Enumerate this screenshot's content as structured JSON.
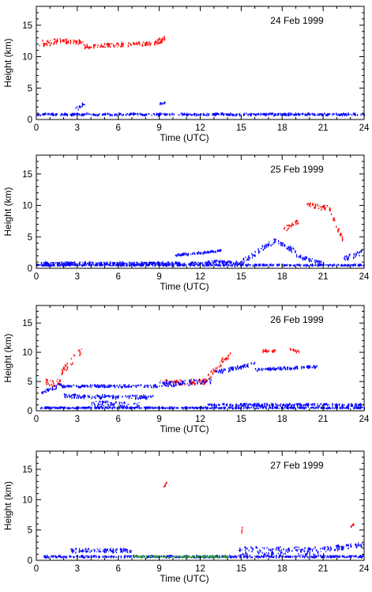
{
  "figure": {
    "colors": {
      "ice": "#ff0000",
      "low": "#0000ff",
      "other": "#2ca02c",
      "axis": "#000000"
    }
  },
  "chart_data": [
    {
      "type": "scatter",
      "title": "24 Feb 1999",
      "xlabel": "Time (UTC)",
      "ylabel": "Height (km)",
      "xlim": [
        0,
        24
      ],
      "ylim": [
        0,
        18
      ],
      "xticks": [
        0,
        3,
        6,
        9,
        12,
        15,
        18,
        21,
        24
      ],
      "yticks": [
        0,
        5,
        10,
        15
      ],
      "grid": false,
      "series": [
        {
          "color": "#ff0000",
          "segments": [
            {
              "x": [
                0.2,
                1.5
              ],
              "y": [
                12.0,
                12.5
              ],
              "spread": 1.2
            },
            {
              "x": [
                1.5,
                3.5
              ],
              "y": [
                12.6,
                12.2
              ],
              "spread": 0.7
            },
            {
              "x": [
                3.5,
                9.2
              ],
              "y": [
                11.6,
                12.2
              ],
              "spread": 0.6
            },
            {
              "x": [
                8.8,
                9.4
              ],
              "y": [
                12.5,
                13.0
              ],
              "spread": 0.5
            }
          ]
        },
        {
          "color": "#0000ff",
          "segments": [
            {
              "x": [
                0.0,
                24.0
              ],
              "y": [
                0.8,
                0.8
              ],
              "spread": 0.3
            },
            {
              "x": [
                2.8,
                3.5
              ],
              "y": [
                1.5,
                2.6
              ],
              "spread": 0.6
            },
            {
              "x": [
                9.0,
                9.4
              ],
              "y": [
                2.5,
                2.7
              ],
              "spread": 0.2
            }
          ]
        }
      ]
    },
    {
      "type": "scatter",
      "title": "25 Feb 1999",
      "xlabel": "Time (UTC)",
      "ylabel": "Height (km)",
      "xlim": [
        0,
        24
      ],
      "ylim": [
        0,
        18
      ],
      "xticks": [
        0,
        3,
        6,
        9,
        12,
        15,
        18,
        21,
        24
      ],
      "yticks": [
        0,
        5,
        10,
        15
      ],
      "grid": false,
      "series": [
        {
          "color": "#ff0000",
          "segments": [
            {
              "x": [
                19.8,
                21.5
              ],
              "y": [
                10.0,
                9.5
              ],
              "spread": 0.8
            },
            {
              "x": [
                21.5,
                22.4
              ],
              "y": [
                9.0,
                4.5
              ],
              "spread": 0.8
            },
            {
              "x": [
                18.0,
                19.2
              ],
              "y": [
                6.0,
                7.5
              ],
              "spread": 0.8
            }
          ]
        },
        {
          "color": "#0000ff",
          "segments": [
            {
              "x": [
                0.3,
                13.0
              ],
              "y": [
                0.8,
                0.8
              ],
              "spread": 0.3
            },
            {
              "x": [
                10.0,
                13.5
              ],
              "y": [
                2.0,
                2.8
              ],
              "spread": 0.3
            },
            {
              "x": [
                12.5,
                15.0
              ],
              "y": [
                1.2,
                0.8
              ],
              "spread": 0.4
            },
            {
              "x": [
                15.0,
                17.5
              ],
              "y": [
                1.0,
                4.5
              ],
              "spread": 0.8
            },
            {
              "x": [
                17.5,
                19.0
              ],
              "y": [
                4.5,
                2.5
              ],
              "spread": 0.8
            },
            {
              "x": [
                19.0,
                21.0
              ],
              "y": [
                2.0,
                0.8
              ],
              "spread": 0.6
            },
            {
              "x": [
                22.5,
                23.8
              ],
              "y": [
                1.5,
                2.5
              ],
              "spread": 0.8
            },
            {
              "x": [
                0.0,
                24.0
              ],
              "y": [
                0.5,
                0.5
              ],
              "spread": 0.2
            }
          ]
        }
      ]
    },
    {
      "type": "scatter",
      "title": "26 Feb 1999",
      "xlabel": "Time (UTC)",
      "ylabel": "Height (km)",
      "xlim": [
        0,
        24
      ],
      "ylim": [
        0,
        18
      ],
      "xticks": [
        0,
        3,
        6,
        9,
        12,
        15,
        18,
        21,
        24
      ],
      "yticks": [
        0,
        5,
        10,
        15
      ],
      "grid": false,
      "series": [
        {
          "color": "#ff0000",
          "segments": [
            {
              "x": [
                0.6,
                1.8
              ],
              "y": [
                4.8,
                4.8
              ],
              "spread": 1.2
            },
            {
              "x": [
                1.8,
                3.3
              ],
              "y": [
                6.5,
                10.5
              ],
              "spread": 1.2
            },
            {
              "x": [
                9.0,
                12.5
              ],
              "y": [
                4.8,
                5.0
              ],
              "spread": 0.9
            },
            {
              "x": [
                12.5,
                14.2
              ],
              "y": [
                5.5,
                10.0
              ],
              "spread": 1.2
            },
            {
              "x": [
                16.5,
                17.5
              ],
              "y": [
                10.2,
                10.2
              ],
              "spread": 0.4
            },
            {
              "x": [
                18.5,
                19.2
              ],
              "y": [
                10.5,
                10.0
              ],
              "spread": 0.4
            }
          ]
        },
        {
          "color": "#0000ff",
          "segments": [
            {
              "x": [
                0.3,
                1.8
              ],
              "y": [
                3.2,
                4.5
              ],
              "spread": 0.8
            },
            {
              "x": [
                1.8,
                9.0
              ],
              "y": [
                4.2,
                4.2
              ],
              "spread": 0.4
            },
            {
              "x": [
                9.0,
                12.8
              ],
              "y": [
                4.5,
                5.0
              ],
              "spread": 0.9
            },
            {
              "x": [
                13.0,
                16.0
              ],
              "y": [
                6.5,
                8.0
              ],
              "spread": 0.6
            },
            {
              "x": [
                16.0,
                20.5
              ],
              "y": [
                7.0,
                7.5
              ],
              "spread": 0.4
            },
            {
              "x": [
                0.3,
                24.0
              ],
              "y": [
                0.5,
                0.5
              ],
              "spread": 0.2
            },
            {
              "x": [
                2.0,
                8.5
              ],
              "y": [
                2.5,
                2.3
              ],
              "spread": 0.6
            },
            {
              "x": [
                4.0,
                7.5
              ],
              "y": [
                1.0,
                1.0
              ],
              "spread": 1.2
            },
            {
              "x": [
                12.5,
                24.0
              ],
              "y": [
                1.0,
                1.0
              ],
              "spread": 0.4
            }
          ]
        }
      ]
    },
    {
      "type": "scatter",
      "title": "27 Feb 1999",
      "xlabel": "Time (UTC)",
      "ylabel": "Height (km)",
      "xlim": [
        0,
        24
      ],
      "ylim": [
        0,
        18
      ],
      "xticks": [
        0,
        3,
        6,
        9,
        12,
        15,
        18,
        21,
        24
      ],
      "yticks": [
        0,
        5,
        10,
        15
      ],
      "grid": false,
      "series": [
        {
          "color": "#ff0000",
          "segments": [
            {
              "x": [
                9.3,
                9.5
              ],
              "y": [
                12.2,
                12.6
              ],
              "spread": 0.4
            },
            {
              "x": [
                15.0,
                15.1
              ],
              "y": [
                4.5,
                6.0
              ],
              "spread": 0.5
            },
            {
              "x": [
                23.0,
                23.2
              ],
              "y": [
                5.5,
                6.0
              ],
              "spread": 0.3
            }
          ]
        },
        {
          "color": "#0000ff",
          "segments": [
            {
              "x": [
                0.5,
                24.0
              ],
              "y": [
                0.6,
                0.6
              ],
              "spread": 0.3
            },
            {
              "x": [
                2.5,
                7.0
              ],
              "y": [
                1.6,
                1.6
              ],
              "spread": 0.6
            },
            {
              "x": [
                14.8,
                21.0
              ],
              "y": [
                1.5,
                1.5
              ],
              "spread": 1.4
            },
            {
              "x": [
                21.0,
                24.0
              ],
              "y": [
                1.8,
                2.6
              ],
              "spread": 0.8
            }
          ]
        },
        {
          "color": "#2ca02c",
          "segments": [
            {
              "x": [
                7.0,
                14.0
              ],
              "y": [
                0.6,
                0.6
              ],
              "spread": 0.2
            }
          ]
        }
      ]
    }
  ]
}
